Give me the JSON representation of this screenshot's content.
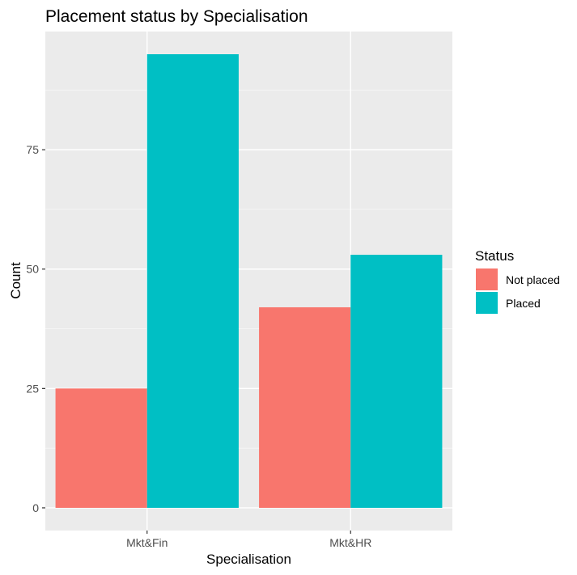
{
  "chart_data": {
    "type": "bar",
    "title": "Placement status by Specialisation",
    "xlabel": "Specialisation",
    "ylabel": "Count",
    "categories": [
      "Mkt&Fin",
      "Mkt&HR"
    ],
    "series": [
      {
        "name": "Not placed",
        "values": [
          25,
          42
        ],
        "color": "#F8766D"
      },
      {
        "name": "Placed",
        "values": [
          95,
          53
        ],
        "color": "#00BFC4"
      }
    ],
    "ylim": [
      -4.75,
      99.75
    ],
    "yticks": [
      0,
      25,
      50,
      75
    ],
    "ytick_labels": [
      "0",
      "25",
      "50",
      "75"
    ],
    "grid": true,
    "legend": {
      "title": "Status",
      "placement": "right"
    },
    "colors": {
      "panel_background": "#EBEBEB",
      "grid_major": "#FFFFFF",
      "grid_minor": "#F5F5F5",
      "tick_text": "#4D4D4D",
      "tick_mark": "#333333"
    }
  }
}
